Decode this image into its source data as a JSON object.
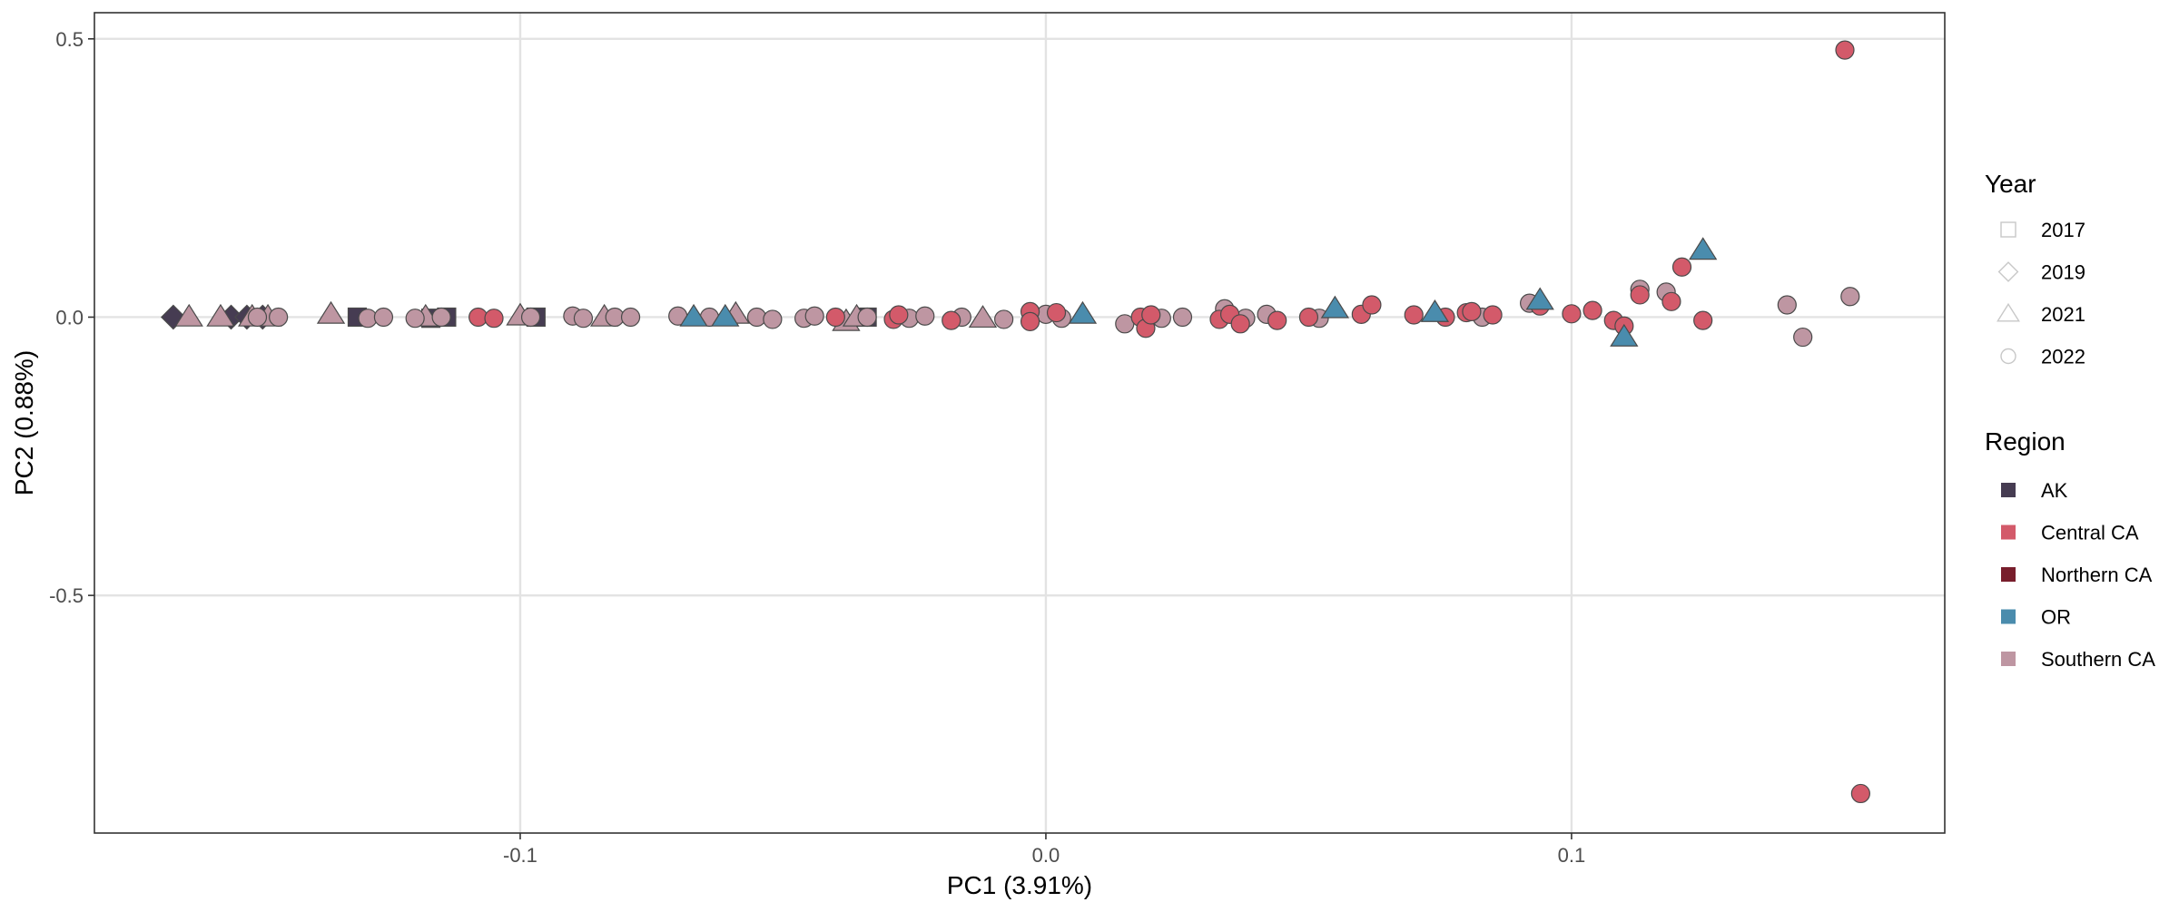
{
  "chart_data": {
    "type": "scatter",
    "title": "",
    "xlabel": "PC1 (3.91%)",
    "ylabel": "PC2 (0.88%)",
    "xlim": [
      -0.181,
      0.171
    ],
    "ylim": [
      -0.927,
      0.547
    ],
    "x_ticks": [
      -0.1,
      0.0,
      0.1
    ],
    "x_tick_labels": [
      "-0.1",
      "0.0",
      "0.1"
    ],
    "y_ticks": [
      0.5,
      0.0,
      -0.5
    ],
    "y_tick_labels": [
      "0.5",
      "0.0",
      "-0.5"
    ],
    "grid": true,
    "legend_placement": "right",
    "legends": {
      "year": {
        "title": "Year",
        "entries": [
          {
            "label": "2017",
            "shape": "square"
          },
          {
            "label": "2019",
            "shape": "diamond"
          },
          {
            "label": "2021",
            "shape": "triangle"
          },
          {
            "label": "2022",
            "shape": "circle"
          }
        ]
      },
      "region": {
        "title": "Region",
        "entries": [
          {
            "label": "AK",
            "color": "#463C52"
          },
          {
            "label": "Central CA",
            "color": "#D35A6A"
          },
          {
            "label": "Northern CA",
            "color": "#781E2C"
          },
          {
            "label": "OR",
            "color": "#4A8CAD"
          },
          {
            "label": "Southern CA",
            "color": "#BE96A2"
          }
        ]
      }
    },
    "points": [
      {
        "x": -0.166,
        "y": 0.0,
        "region": "AK",
        "year": "2019"
      },
      {
        "x": -0.155,
        "y": 0.0,
        "region": "AK",
        "year": "2019"
      },
      {
        "x": -0.152,
        "y": 0.0,
        "region": "AK",
        "year": "2019"
      },
      {
        "x": -0.149,
        "y": 0.0,
        "region": "AK",
        "year": "2019"
      },
      {
        "x": -0.131,
        "y": 0.0,
        "region": "AK",
        "year": "2017"
      },
      {
        "x": -0.117,
        "y": -0.002,
        "region": "AK",
        "year": "2017"
      },
      {
        "x": -0.114,
        "y": 0.0,
        "region": "AK",
        "year": "2017"
      },
      {
        "x": -0.097,
        "y": 0.0,
        "region": "AK",
        "year": "2017"
      },
      {
        "x": -0.034,
        "y": 0.0,
        "region": "AK",
        "year": "2017"
      },
      {
        "x": -0.163,
        "y": 0.0,
        "region": "Southern CA",
        "year": "2021"
      },
      {
        "x": -0.157,
        "y": 0.0,
        "region": "Southern CA",
        "year": "2021"
      },
      {
        "x": -0.151,
        "y": 0.0,
        "region": "Southern CA",
        "year": "2021"
      },
      {
        "x": -0.148,
        "y": 0.0,
        "region": "Southern CA",
        "year": "2021"
      },
      {
        "x": -0.136,
        "y": 0.005,
        "region": "Southern CA",
        "year": "2021"
      },
      {
        "x": -0.118,
        "y": 0.0,
        "region": "Southern CA",
        "year": "2021"
      },
      {
        "x": -0.1,
        "y": 0.002,
        "region": "Southern CA",
        "year": "2021"
      },
      {
        "x": -0.084,
        "y": 0.0,
        "region": "Southern CA",
        "year": "2021"
      },
      {
        "x": -0.059,
        "y": 0.005,
        "region": "Southern CA",
        "year": "2021"
      },
      {
        "x": -0.038,
        "y": -0.008,
        "region": "Southern CA",
        "year": "2021"
      },
      {
        "x": -0.012,
        "y": -0.002,
        "region": "Southern CA",
        "year": "2021"
      },
      {
        "x": -0.036,
        "y": 0.0,
        "region": "Southern CA",
        "year": "2021"
      },
      {
        "x": -0.15,
        "y": 0.0,
        "region": "Southern CA",
        "year": "2022"
      },
      {
        "x": -0.146,
        "y": 0.0,
        "region": "Southern CA",
        "year": "2022"
      },
      {
        "x": -0.129,
        "y": -0.002,
        "region": "Southern CA",
        "year": "2022"
      },
      {
        "x": -0.126,
        "y": 0.0,
        "region": "Southern CA",
        "year": "2022"
      },
      {
        "x": -0.12,
        "y": -0.002,
        "region": "Southern CA",
        "year": "2022"
      },
      {
        "x": -0.115,
        "y": 0.0,
        "region": "Southern CA",
        "year": "2022"
      },
      {
        "x": -0.098,
        "y": 0.0,
        "region": "Southern CA",
        "year": "2022"
      },
      {
        "x": -0.09,
        "y": 0.002,
        "region": "Southern CA",
        "year": "2022"
      },
      {
        "x": -0.088,
        "y": -0.002,
        "region": "Southern CA",
        "year": "2022"
      },
      {
        "x": -0.082,
        "y": 0.0,
        "region": "Southern CA",
        "year": "2022"
      },
      {
        "x": -0.079,
        "y": 0.0,
        "region": "Southern CA",
        "year": "2022"
      },
      {
        "x": -0.07,
        "y": 0.002,
        "region": "Southern CA",
        "year": "2022"
      },
      {
        "x": -0.064,
        "y": 0.0,
        "region": "Southern CA",
        "year": "2022"
      },
      {
        "x": -0.055,
        "y": 0.0,
        "region": "Southern CA",
        "year": "2022"
      },
      {
        "x": -0.052,
        "y": -0.004,
        "region": "Southern CA",
        "year": "2022"
      },
      {
        "x": -0.046,
        "y": -0.002,
        "region": "Southern CA",
        "year": "2022"
      },
      {
        "x": -0.044,
        "y": 0.002,
        "region": "Southern CA",
        "year": "2022"
      },
      {
        "x": -0.034,
        "y": 0.0,
        "region": "Southern CA",
        "year": "2022"
      },
      {
        "x": -0.026,
        "y": -0.002,
        "region": "Southern CA",
        "year": "2022"
      },
      {
        "x": -0.023,
        "y": 0.002,
        "region": "Southern CA",
        "year": "2022"
      },
      {
        "x": -0.016,
        "y": 0.0,
        "region": "Southern CA",
        "year": "2022"
      },
      {
        "x": -0.008,
        "y": -0.004,
        "region": "Southern CA",
        "year": "2022"
      },
      {
        "x": 0.0,
        "y": 0.005,
        "region": "Southern CA",
        "year": "2022"
      },
      {
        "x": 0.003,
        "y": -0.002,
        "region": "Southern CA",
        "year": "2022"
      },
      {
        "x": 0.015,
        "y": -0.012,
        "region": "Southern CA",
        "year": "2022"
      },
      {
        "x": 0.022,
        "y": -0.002,
        "region": "Southern CA",
        "year": "2022"
      },
      {
        "x": 0.026,
        "y": 0.0,
        "region": "Southern CA",
        "year": "2022"
      },
      {
        "x": 0.034,
        "y": 0.015,
        "region": "Southern CA",
        "year": "2022"
      },
      {
        "x": 0.038,
        "y": -0.002,
        "region": "Southern CA",
        "year": "2022"
      },
      {
        "x": 0.042,
        "y": 0.005,
        "region": "Southern CA",
        "year": "2022"
      },
      {
        "x": 0.052,
        "y": -0.002,
        "region": "Southern CA",
        "year": "2022"
      },
      {
        "x": 0.083,
        "y": 0.0,
        "region": "Southern CA",
        "year": "2022"
      },
      {
        "x": 0.092,
        "y": 0.025,
        "region": "Southern CA",
        "year": "2022"
      },
      {
        "x": 0.113,
        "y": 0.05,
        "region": "Southern CA",
        "year": "2022"
      },
      {
        "x": 0.118,
        "y": 0.045,
        "region": "Southern CA",
        "year": "2022"
      },
      {
        "x": 0.141,
        "y": 0.022,
        "region": "Southern CA",
        "year": "2022"
      },
      {
        "x": 0.144,
        "y": -0.036,
        "region": "Southern CA",
        "year": "2022"
      },
      {
        "x": 0.153,
        "y": 0.037,
        "region": "Southern CA",
        "year": "2022"
      },
      {
        "x": -0.108,
        "y": 0.0,
        "region": "Central CA",
        "year": "2022"
      },
      {
        "x": -0.105,
        "y": -0.002,
        "region": "Central CA",
        "year": "2022"
      },
      {
        "x": -0.04,
        "y": 0.0,
        "region": "Central CA",
        "year": "2022"
      },
      {
        "x": -0.029,
        "y": -0.004,
        "region": "Central CA",
        "year": "2022"
      },
      {
        "x": -0.028,
        "y": 0.004,
        "region": "Central CA",
        "year": "2022"
      },
      {
        "x": -0.018,
        "y": -0.006,
        "region": "Central CA",
        "year": "2022"
      },
      {
        "x": -0.003,
        "y": 0.01,
        "region": "Central CA",
        "year": "2022"
      },
      {
        "x": -0.003,
        "y": -0.008,
        "region": "Central CA",
        "year": "2022"
      },
      {
        "x": 0.002,
        "y": 0.008,
        "region": "Central CA",
        "year": "2022"
      },
      {
        "x": 0.018,
        "y": 0.0,
        "region": "Central CA",
        "year": "2022"
      },
      {
        "x": 0.019,
        "y": -0.02,
        "region": "Central CA",
        "year": "2022"
      },
      {
        "x": 0.02,
        "y": 0.004,
        "region": "Central CA",
        "year": "2022"
      },
      {
        "x": 0.033,
        "y": -0.004,
        "region": "Central CA",
        "year": "2022"
      },
      {
        "x": 0.035,
        "y": 0.005,
        "region": "Central CA",
        "year": "2022"
      },
      {
        "x": 0.037,
        "y": -0.012,
        "region": "Central CA",
        "year": "2022"
      },
      {
        "x": 0.044,
        "y": -0.006,
        "region": "Central CA",
        "year": "2022"
      },
      {
        "x": 0.05,
        "y": 0.0,
        "region": "Central CA",
        "year": "2022"
      },
      {
        "x": 0.06,
        "y": 0.005,
        "region": "Central CA",
        "year": "2022"
      },
      {
        "x": 0.062,
        "y": 0.022,
        "region": "Central CA",
        "year": "2022"
      },
      {
        "x": 0.07,
        "y": 0.004,
        "region": "Central CA",
        "year": "2022"
      },
      {
        "x": 0.076,
        "y": 0.0,
        "region": "Central CA",
        "year": "2022"
      },
      {
        "x": 0.08,
        "y": 0.008,
        "region": "Central CA",
        "year": "2022"
      },
      {
        "x": 0.081,
        "y": 0.01,
        "region": "Central CA",
        "year": "2022"
      },
      {
        "x": 0.085,
        "y": 0.004,
        "region": "Central CA",
        "year": "2022"
      },
      {
        "x": 0.094,
        "y": 0.02,
        "region": "Central CA",
        "year": "2022"
      },
      {
        "x": 0.1,
        "y": 0.006,
        "region": "Central CA",
        "year": "2022"
      },
      {
        "x": 0.104,
        "y": 0.012,
        "region": "Central CA",
        "year": "2022"
      },
      {
        "x": 0.108,
        "y": -0.006,
        "region": "Central CA",
        "year": "2022"
      },
      {
        "x": 0.11,
        "y": -0.016,
        "region": "Central CA",
        "year": "2022"
      },
      {
        "x": 0.113,
        "y": 0.04,
        "region": "Central CA",
        "year": "2022"
      },
      {
        "x": 0.119,
        "y": 0.028,
        "region": "Central CA",
        "year": "2022"
      },
      {
        "x": 0.121,
        "y": 0.09,
        "region": "Central CA",
        "year": "2022"
      },
      {
        "x": 0.125,
        "y": -0.006,
        "region": "Central CA",
        "year": "2022"
      },
      {
        "x": 0.152,
        "y": 0.48,
        "region": "Central CA",
        "year": "2022"
      },
      {
        "x": 0.155,
        "y": -0.856,
        "region": "Central CA",
        "year": "2022"
      },
      {
        "x": -0.067,
        "y": 0.0,
        "region": "OR",
        "year": "2021"
      },
      {
        "x": -0.061,
        "y": 0.0,
        "region": "OR",
        "year": "2021"
      },
      {
        "x": 0.007,
        "y": 0.005,
        "region": "OR",
        "year": "2021"
      },
      {
        "x": 0.055,
        "y": 0.015,
        "region": "OR",
        "year": "2021"
      },
      {
        "x": 0.074,
        "y": 0.008,
        "region": "OR",
        "year": "2021"
      },
      {
        "x": 0.094,
        "y": 0.03,
        "region": "OR",
        "year": "2021"
      },
      {
        "x": 0.11,
        "y": -0.036,
        "region": "OR",
        "year": "2021"
      },
      {
        "x": 0.125,
        "y": 0.12,
        "region": "OR",
        "year": "2021"
      }
    ]
  }
}
